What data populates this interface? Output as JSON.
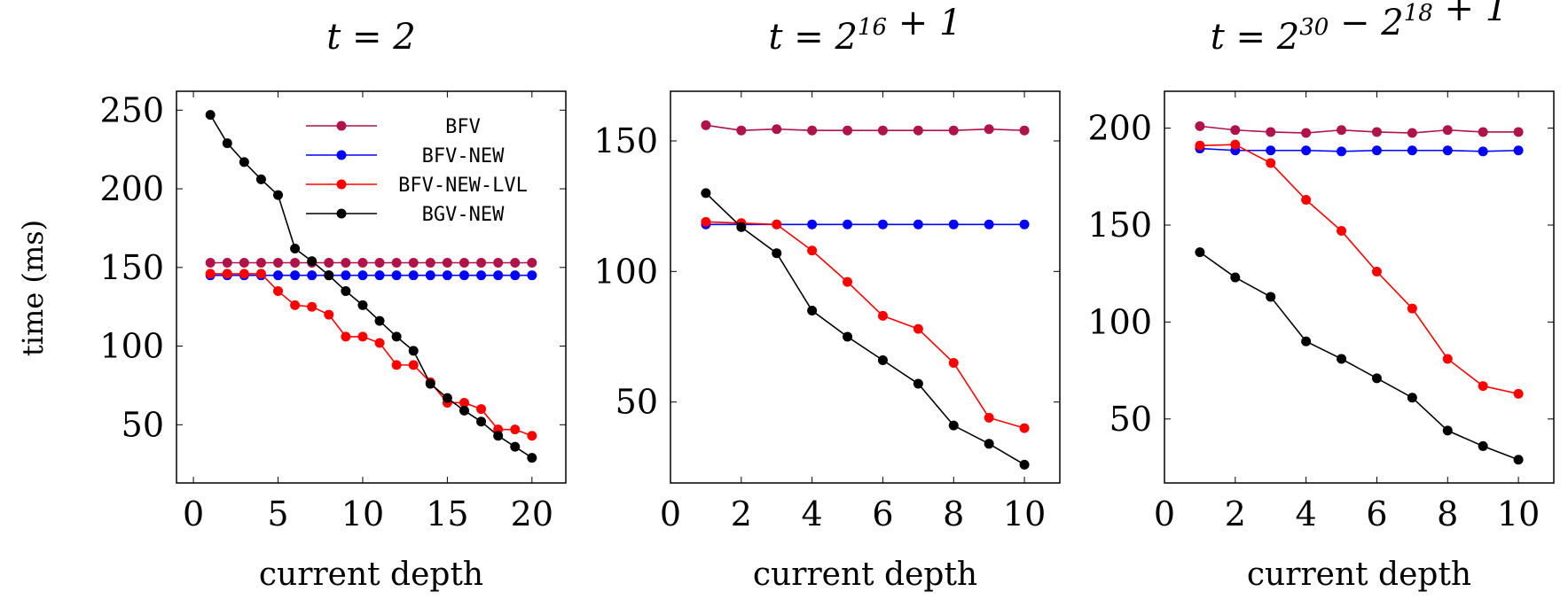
{
  "figure": {
    "ylabel": "time (ms)",
    "legend_position": "top-right of first panel"
  },
  "chart_data": [
    {
      "type": "line",
      "title": "t = 2",
      "title_parts": {
        "base": "t = 2",
        "sup1": "",
        "mid": "",
        "sup2": "",
        "tail": ""
      },
      "xlabel": "current depth",
      "ylabel": "time (ms)",
      "xlim": [
        -1,
        22
      ],
      "ylim": [
        13,
        262
      ],
      "xticks": [
        0,
        5,
        10,
        15,
        20
      ],
      "yticks": [
        50,
        100,
        150,
        200,
        250
      ],
      "grid": false,
      "legend": "top-right",
      "x": [
        1,
        2,
        3,
        4,
        5,
        6,
        7,
        8,
        9,
        10,
        11,
        12,
        13,
        14,
        15,
        16,
        17,
        18,
        19,
        20
      ],
      "series": [
        {
          "name": "BFV",
          "color": "#B0124A",
          "values": [
            153,
            153,
            153,
            153,
            153,
            153,
            153,
            153,
            153,
            153,
            153,
            153,
            153,
            153,
            153,
            153,
            153,
            153,
            153,
            153
          ]
        },
        {
          "name": "BFV-NEW",
          "color": "#0000FF",
          "values": [
            145,
            145,
            145,
            145,
            145,
            145,
            145,
            145,
            145,
            145,
            145,
            145,
            145,
            145,
            145,
            145,
            145,
            145,
            145,
            145
          ]
        },
        {
          "name": "BFV-NEW-LVL",
          "color": "#FF0000",
          "values": [
            146,
            146,
            146,
            146,
            135,
            126,
            125,
            120,
            106,
            106,
            102,
            88,
            88,
            77,
            64,
            64,
            60,
            47,
            47,
            43
          ]
        },
        {
          "name": "BGV-NEW",
          "color": "#000000",
          "values": [
            247,
            229,
            217,
            206,
            196,
            162,
            154,
            145,
            135,
            126,
            116,
            106,
            97,
            76,
            67,
            59,
            52,
            43,
            36,
            29
          ]
        }
      ]
    },
    {
      "type": "line",
      "title": "t = 2^16 + 1",
      "title_parts": {
        "base": "t = 2",
        "sup1": "16",
        "mid": " + 1",
        "sup2": "",
        "tail": ""
      },
      "xlabel": "current depth",
      "ylabel": "",
      "xlim": [
        0,
        11
      ],
      "ylim": [
        19,
        169
      ],
      "xticks": [
        0,
        2,
        4,
        6,
        8,
        10
      ],
      "yticks": [
        50,
        100,
        150
      ],
      "grid": false,
      "legend": "",
      "x": [
        1,
        2,
        3,
        4,
        5,
        6,
        7,
        8,
        9,
        10
      ],
      "series": [
        {
          "name": "BFV",
          "color": "#B0124A",
          "values": [
            156,
            154,
            154.5,
            154,
            154,
            154,
            154,
            154,
            154.5,
            154
          ]
        },
        {
          "name": "BFV-NEW",
          "color": "#0000FF",
          "values": [
            118,
            118,
            118,
            118,
            118,
            118,
            118,
            118,
            118,
            118
          ]
        },
        {
          "name": "BFV-NEW-LVL",
          "color": "#FF0000",
          "values": [
            119,
            118.5,
            118,
            108,
            96,
            83,
            78,
            65,
            44,
            40
          ]
        },
        {
          "name": "BGV-NEW",
          "color": "#000000",
          "values": [
            130,
            117,
            107,
            85,
            75,
            66,
            57,
            41,
            34,
            26
          ]
        }
      ]
    },
    {
      "type": "line",
      "title": "t = 2^30 − 2^18 + 1",
      "title_parts": {
        "base": "t = 2",
        "sup1": "30",
        "mid": " − 2",
        "sup2": "18",
        "tail": " + 1"
      },
      "xlabel": "current depth",
      "ylabel": "",
      "xlim": [
        0,
        11
      ],
      "ylim": [
        17,
        219
      ],
      "xticks": [
        0,
        2,
        4,
        6,
        8,
        10
      ],
      "yticks": [
        50,
        100,
        150,
        200
      ],
      "grid": false,
      "legend": "",
      "x": [
        1,
        2,
        3,
        4,
        5,
        6,
        7,
        8,
        9,
        10
      ],
      "series": [
        {
          "name": "BFV",
          "color": "#B0124A",
          "values": [
            201,
            199,
            198,
            197.5,
            199,
            198,
            197.5,
            199,
            198,
            198
          ]
        },
        {
          "name": "BFV-NEW",
          "color": "#0000FF",
          "values": [
            189.5,
            188.5,
            188.5,
            188.5,
            188,
            188.5,
            188.5,
            188.5,
            188,
            188.5
          ]
        },
        {
          "name": "BFV-NEW-LVL",
          "color": "#FF0000",
          "values": [
            191,
            191.5,
            182,
            163,
            147,
            126,
            107,
            81,
            67,
            63
          ]
        },
        {
          "name": "BGV-NEW",
          "color": "#000000",
          "values": [
            136,
            123,
            113,
            90,
            81,
            71,
            61,
            44,
            36,
            29
          ]
        }
      ]
    }
  ]
}
